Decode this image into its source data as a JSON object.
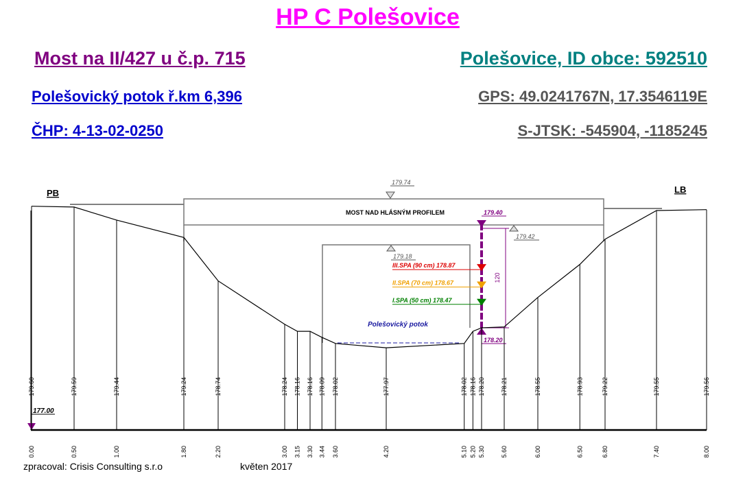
{
  "header": {
    "title": "HP C Polešovice",
    "bridge": "Most na II/427 u č.p. 715",
    "place": "Polešovice, ID obce: 592510",
    "stream": "Polešovický potok ř.km 6,396",
    "gps": "GPS: 49.0241767N, 17.3546119E",
    "chp": "ČHP: 4-13-02-0250",
    "sjtsk": "S-JTSK: -545904, -1185245"
  },
  "chart_data": {
    "type": "cross-section",
    "bank_left": "PB",
    "bank_right": "LB",
    "bridge_label": "MOST NAD HLÁSNÝM PROFILEM",
    "stream_label": "Polešovický potok",
    "datum": "177.00",
    "dist_unit_values": [
      0.0,
      0.5,
      1.0,
      1.8,
      2.2,
      3.0,
      3.15,
      3.3,
      3.44,
      3.6,
      4.2,
      5.1,
      5.2,
      5.3,
      5.6,
      6.0,
      6.5,
      6.8,
      7.4,
      8.0
    ],
    "dist_labels": [
      "0.00",
      "0.50",
      "1.00",
      "1.80",
      "2.20",
      "3.00",
      "3.15",
      "3.30",
      "3.44",
      "3.60",
      "4.20",
      "5.10",
      "5.20",
      "5.30",
      "5.60",
      "6.00",
      "6.50",
      "6.80",
      "7.40",
      "8.00"
    ],
    "elev_labels": [
      "179.60",
      "179.59",
      "179.44",
      "179.24",
      "178.74",
      "178.24",
      "178.16",
      "178.16",
      "178.09",
      "178.02",
      "177.97",
      "178.02",
      "178.16",
      "178.20",
      "178.21",
      "178.55",
      "178.93",
      "179.22",
      "179.55",
      "179.56"
    ],
    "profile": [
      [
        0.0,
        179.6
      ],
      [
        0.5,
        179.59
      ],
      [
        1.0,
        179.44
      ],
      [
        1.8,
        179.24
      ],
      [
        2.2,
        178.74
      ],
      [
        3.0,
        178.24
      ],
      [
        3.15,
        178.16
      ],
      [
        3.3,
        178.16
      ],
      [
        3.44,
        178.09
      ],
      [
        3.6,
        178.02
      ],
      [
        4.2,
        177.97
      ],
      [
        5.1,
        178.02
      ],
      [
        5.2,
        178.16
      ],
      [
        5.3,
        178.2
      ],
      [
        5.6,
        178.21
      ],
      [
        6.0,
        178.55
      ],
      [
        6.5,
        178.93
      ],
      [
        6.8,
        179.22
      ],
      [
        7.4,
        179.55
      ],
      [
        8.0,
        179.56
      ]
    ],
    "bridge_deck_top": "179.74",
    "bridge_soffit": "179.42",
    "opening_top": "179.18",
    "gauge_top": "179.40",
    "gauge_zero": "178.20",
    "gauge_length": "120",
    "levels": [
      {
        "label": "III.SPA (90 cm)",
        "value": "178.87",
        "elev": 178.87,
        "color": "#dd0000"
      },
      {
        "label": "II.SPA (70 cm)",
        "value": "178.67",
        "elev": 178.67,
        "color": "#f0a000"
      },
      {
        "label": "I.SPA (50 cm)",
        "value": "178.47",
        "elev": 178.47,
        "color": "#008000"
      }
    ]
  },
  "footer": {
    "author": "zpracoval: Crisis Consulting s.r.o",
    "date": "květen 2017"
  }
}
